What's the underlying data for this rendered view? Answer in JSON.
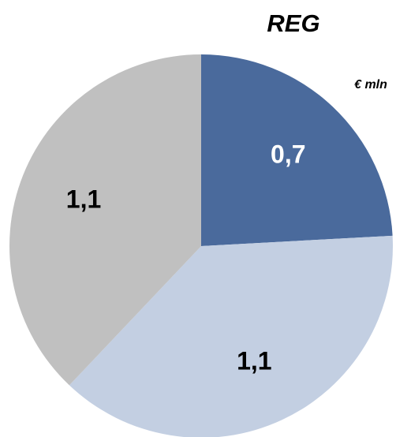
{
  "chart_data": {
    "type": "pie",
    "title": "REG",
    "unit_label": "€ mln",
    "slices": [
      {
        "label": "0,7",
        "value": 0.7,
        "color": "#4a6a9c",
        "label_color": "#ffffff"
      },
      {
        "label": "1,1",
        "value": 1.1,
        "color": "#c3cfe2",
        "label_color": "#000000"
      },
      {
        "label": "1,1",
        "value": 1.1,
        "color": "#c0c0c0",
        "label_color": "#000000"
      }
    ],
    "start_angle_deg": 0,
    "direction": "clockwise"
  }
}
